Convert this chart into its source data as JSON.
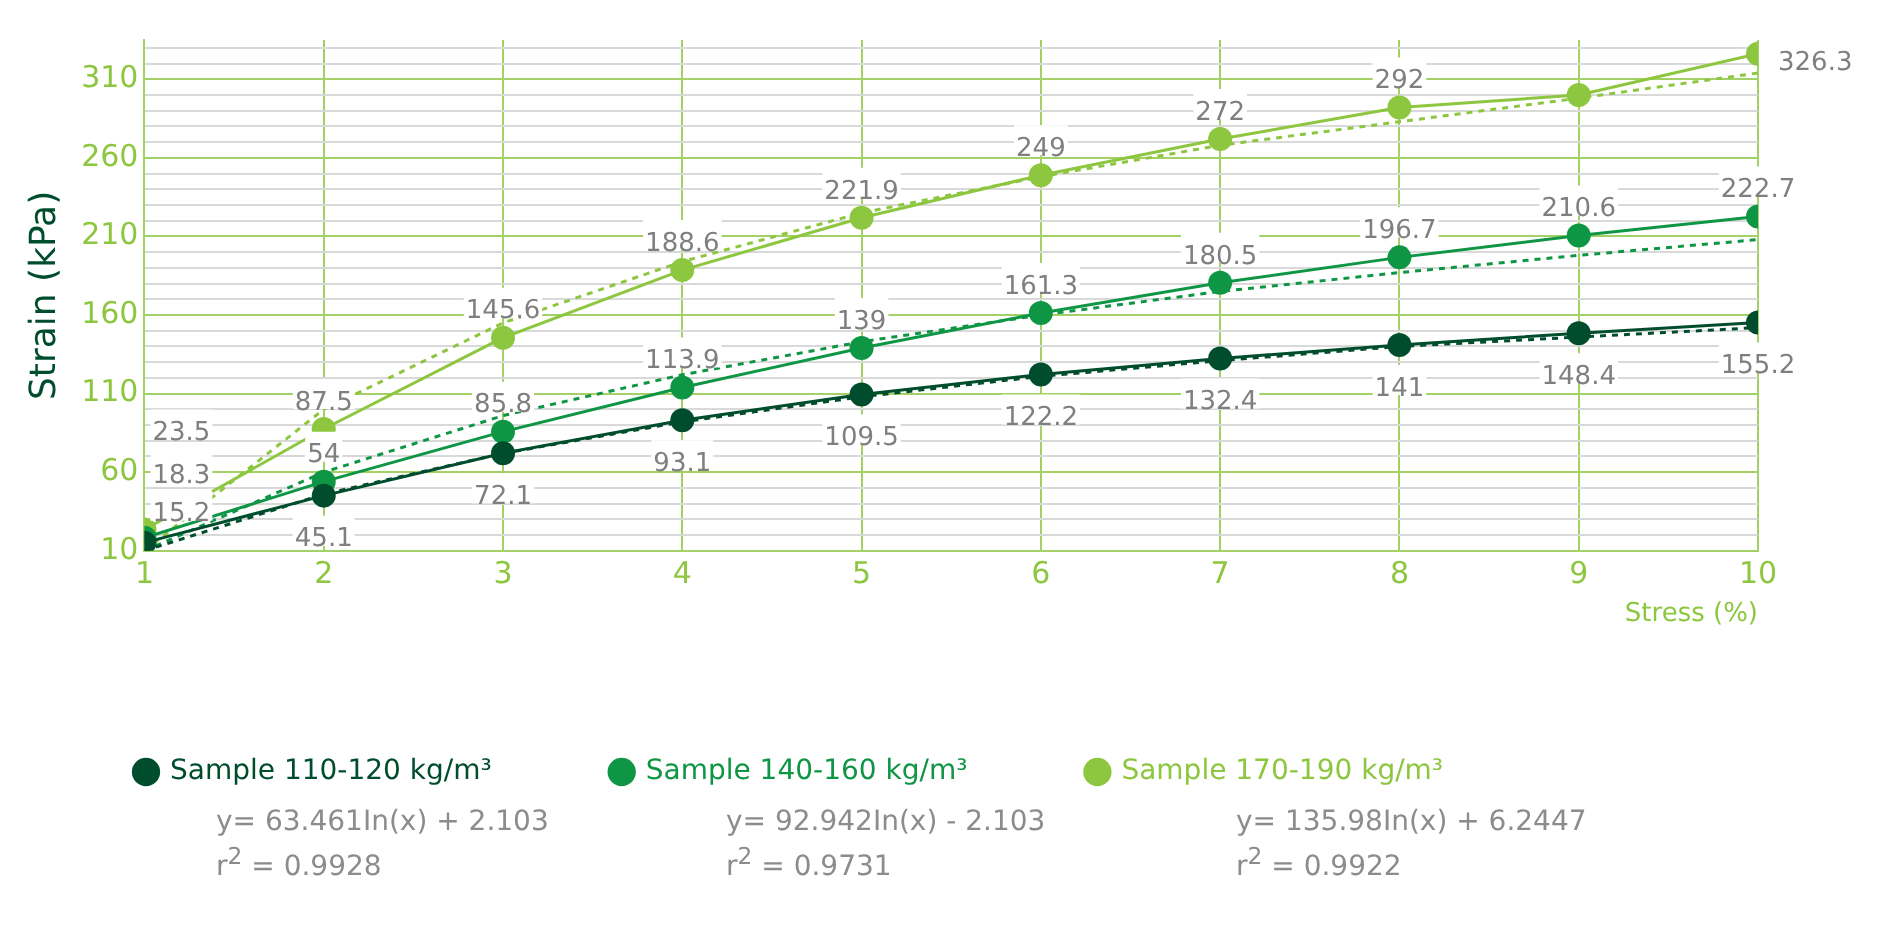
{
  "chart_data": {
    "type": "line",
    "ylabel": "Strain (kPa)",
    "xlabel": "Stress (%)",
    "x": [
      1,
      2,
      3,
      4,
      5,
      6,
      7,
      8,
      9,
      10
    ],
    "xlim": [
      1,
      10
    ],
    "xticks": [
      1,
      2,
      3,
      4,
      5,
      6,
      7,
      8,
      9,
      10
    ],
    "ylim": [
      10,
      335
    ],
    "yticks": [
      10,
      {
        "value": 20,
        "label": null
      },
      {
        "value": 30,
        "label": null
      },
      {
        "value": 40,
        "label": null
      },
      {
        "value": 50,
        "label": null
      },
      60,
      {
        "value": 70,
        "label": null
      },
      {
        "value": 80,
        "label": null
      },
      {
        "value": 90,
        "label": null
      },
      {
        "value": 100,
        "label": null
      },
      110,
      {
        "value": 120,
        "label": null
      },
      {
        "value": 130,
        "label": null
      },
      {
        "value": 140,
        "label": null
      },
      {
        "value": 150,
        "label": null
      },
      160,
      {
        "value": 170,
        "label": null
      },
      {
        "value": 180,
        "label": null
      },
      {
        "value": 190,
        "label": null
      },
      {
        "value": 200,
        "label": null
      },
      210,
      {
        "value": 220,
        "label": null
      },
      {
        "value": 230,
        "label": null
      },
      {
        "value": 240,
        "label": null
      },
      {
        "value": 250,
        "label": null
      },
      260,
      {
        "value": 270,
        "label": null
      },
      {
        "value": 280,
        "label": null
      },
      {
        "value": 290,
        "label": null
      },
      {
        "value": 300,
        "label": null
      },
      310,
      {
        "value": 320,
        "label": null
      },
      {
        "value": 330,
        "label": null
      }
    ],
    "grid": true,
    "legend": "bottom",
    "marker": "circle",
    "series": [
      {
        "name": "Sample 110-120 kg/m³",
        "color": "#004d2e",
        "values": [
          15.2,
          45.1,
          72.1,
          93.1,
          109.5,
          122.2,
          132.4,
          141,
          148.4,
          155.2
        ],
        "value_labels": [
          "15.2",
          "45.1",
          "72.1",
          "93.1",
          "109.5",
          "122.2",
          "132.4",
          "141",
          "148.4",
          "155.2"
        ]
      },
      {
        "name": "Sample 140-160 kg/m³",
        "color": "#0f9645",
        "values": [
          18.3,
          54,
          85.8,
          113.9,
          139,
          161.3,
          180.5,
          196.7,
          210.6,
          222.7
        ],
        "value_labels": [
          "18.3",
          "54",
          "85.8",
          "113.9",
          "139",
          "161.3",
          "180.5",
          "196.7",
          "210.6",
          "222.7"
        ]
      },
      {
        "name": "Sample 170-190 kg/m³",
        "color": "#8dc63f",
        "values": [
          23.5,
          87.5,
          145.6,
          188.6,
          221.9,
          249,
          272,
          292,
          300,
          326.3
        ],
        "value_labels": [
          "23.5",
          "87.5",
          "145.6",
          "188.6",
          "221.9",
          "249",
          "272",
          "292",
          null,
          "326.3"
        ]
      },
      {
        "type": "line",
        "color": "#004d2e",
        "x": [
          1,
          2,
          3,
          4,
          5,
          6,
          7,
          8,
          9,
          10
        ],
        "values": [
          10,
          46,
          72,
          92,
          108,
          121,
          131,
          140,
          146,
          152
        ],
        "line_style": "dotted",
        "marker": "none"
      },
      {
        "type": "line",
        "color": "#0f9645",
        "x": [
          1,
          2,
          3,
          4,
          5,
          6,
          7,
          8,
          9,
          10
        ],
        "values": [
          10,
          60,
          96,
          122,
          143,
          160,
          175,
          187,
          198,
          208
        ],
        "line_style": "dotted",
        "marker": "none"
      },
      {
        "type": "line",
        "color": "#8dc63f",
        "x": [
          1,
          2,
          3,
          4,
          5,
          6,
          7,
          8,
          9,
          10
        ],
        "values": [
          10,
          100,
          155,
          194,
          225,
          248,
          268,
          283,
          298,
          314
        ],
        "line_style": "dotted",
        "marker": "none"
      }
    ],
    "annotations": [
      "y= 63.461In(x) + 2.103",
      "r$^{2}$ = 0.9928",
      "y= 92.942In(x) - 2.103",
      "r$^{2}$ = 0.9731",
      "y= 135.98In(x) + 6.2447",
      "r$^{2}$ = 0.9922"
    ]
  }
}
